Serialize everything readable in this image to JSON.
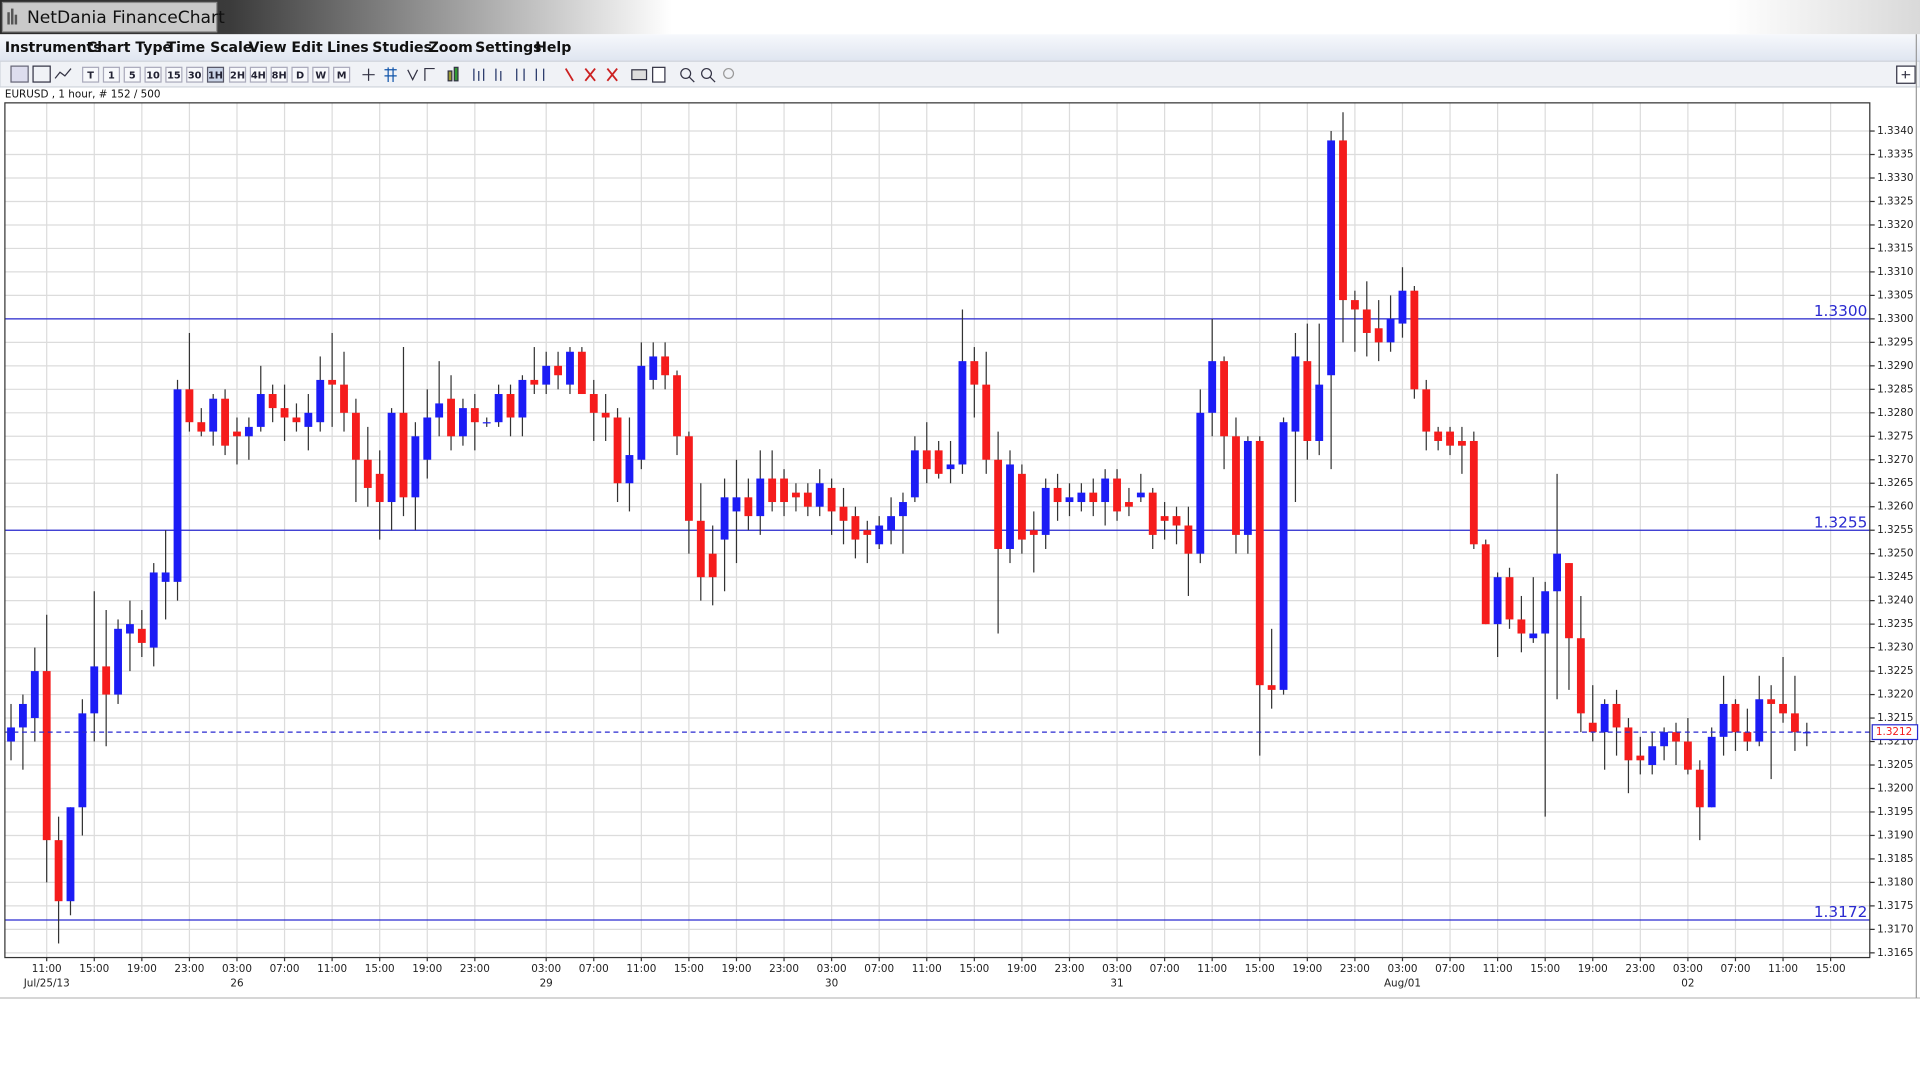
{
  "window": {
    "title": "NetDania FinanceChart"
  },
  "menu": [
    "Instruments",
    "Chart Type",
    "Time Scale",
    "View",
    "Edit",
    "Lines",
    "Studies",
    "Zoom",
    "Settings",
    "Help"
  ],
  "toolbar": [
    "T",
    "1",
    "5",
    "10",
    "15",
    "30",
    "1H",
    "2H",
    "4H",
    "8H",
    "D",
    "W",
    "M"
  ],
  "chart_data": {
    "type": "candlestick",
    "title": "EURUSD , 1 hour, # 152 / 500",
    "up_color": "#1c1cf5",
    "down_color": "#f51c1c",
    "line_color": "#2a2ad0",
    "grid": true,
    "ylim": [
      1.3164,
      1.3346
    ],
    "yticks": [
      1.3165,
      {
        "value": 1.317,
        "label": "1.3170"
      },
      1.3175,
      {
        "value": 1.318,
        "label": "1.3180"
      },
      1.3185,
      {
        "value": 1.319,
        "label": "1.3190"
      },
      1.3195,
      {
        "value": 1.32,
        "label": "1.3200"
      },
      1.3205,
      {
        "value": 1.321,
        "label": "1.3210"
      },
      1.3215,
      {
        "value": 1.322,
        "label": "1.3220"
      },
      1.3225,
      {
        "value": 1.323,
        "label": "1.3230"
      },
      1.3235,
      {
        "value": 1.324,
        "label": "1.3240"
      },
      1.3245,
      {
        "value": 1.325,
        "label": "1.3250"
      },
      1.3255,
      {
        "value": 1.326,
        "label": "1.3260"
      },
      1.3265,
      {
        "value": 1.327,
        "label": "1.3270"
      },
      1.3275,
      {
        "value": 1.328,
        "label": "1.3280"
      },
      1.3285,
      {
        "value": 1.329,
        "label": "1.3290"
      },
      1.3295,
      {
        "value": 1.33,
        "label": "1.3300"
      },
      1.3305,
      {
        "value": 1.331,
        "label": "1.3310"
      },
      1.3315,
      {
        "value": 1.332,
        "label": "1.3320"
      },
      1.3325,
      {
        "value": 1.333,
        "label": "1.3330"
      },
      1.3335,
      {
        "value": 1.334,
        "label": "1.3340"
      }
    ],
    "hlines": [
      {
        "value": 1.33,
        "label": "1.3300"
      },
      1.3255,
      1.3172
    ],
    "current_price": 1.3212,
    "categories": [
      null,
      null,
      null,
      "11:00",
      null,
      null,
      null,
      "15:00",
      null,
      null,
      null,
      "19:00",
      null,
      null,
      null,
      "23:00",
      null,
      null,
      null,
      "03:00",
      null,
      null,
      null,
      "07:00",
      null,
      null,
      null,
      "11:00",
      null,
      null,
      null,
      "15:00",
      null,
      null,
      null,
      "19:00",
      null,
      null,
      null,
      "23:00",
      null,
      null,
      null,
      null,
      null,
      "03:00",
      null,
      null,
      null,
      "07:00",
      null,
      null,
      null,
      "11:00",
      null,
      null,
      null,
      "15:00",
      null,
      null,
      null,
      "19:00",
      null,
      null,
      null,
      "23:00",
      null,
      null,
      null,
      "03:00",
      null,
      null,
      null,
      "07:00",
      null,
      null,
      null,
      "11:00",
      null,
      null,
      null,
      "15:00",
      null,
      null,
      null,
      "19:00",
      null,
      null,
      null,
      "23:00",
      null,
      null,
      null,
      "03:00",
      null,
      null,
      null,
      "07:00",
      null,
      null,
      null,
      "11:00",
      null,
      null,
      null,
      "15:00",
      null,
      null,
      null,
      "19:00",
      null,
      null,
      null,
      "23:00",
      null,
      null,
      null,
      "03:00",
      null,
      null,
      null,
      "07:00",
      null,
      null,
      null,
      "11:00",
      null,
      null,
      null,
      "15:00",
      null,
      null,
      null,
      "19:00",
      null,
      null,
      null,
      "23:00",
      null,
      null,
      null,
      "03:00",
      null,
      null,
      null,
      "07:00",
      null,
      null,
      null,
      "11:00",
      null,
      null,
      null,
      "15:00"
    ],
    "dates": [
      null,
      null,
      null,
      "Jul/25/13",
      null,
      null,
      null,
      null,
      null,
      null,
      null,
      null,
      null,
      null,
      null,
      null,
      null,
      null,
      null,
      "26",
      null,
      null,
      null,
      null,
      null,
      null,
      null,
      null,
      null,
      null,
      null,
      null,
      null,
      null,
      null,
      null,
      null,
      null,
      null,
      null,
      null,
      null,
      null,
      null,
      null,
      "29",
      null,
      null,
      null,
      null,
      null,
      null,
      null,
      null,
      null,
      null,
      null,
      null,
      null,
      null,
      null,
      null,
      null,
      null,
      null,
      null,
      null,
      null,
      null,
      "30",
      null,
      null,
      null,
      null,
      null,
      null,
      null,
      null,
      null,
      null,
      null,
      null,
      null,
      null,
      null,
      null,
      null,
      null,
      null,
      null,
      null,
      null,
      null,
      "31",
      null,
      null,
      null,
      null,
      null,
      null,
      null,
      null,
      null,
      null,
      null,
      null,
      null,
      null,
      null,
      null,
      null,
      null,
      null,
      null,
      null,
      null,
      null,
      "Aug/01",
      null,
      null,
      null,
      null,
      null,
      null,
      null,
      null,
      null,
      null,
      null,
      null,
      null,
      null,
      null,
      null,
      null,
      null,
      null,
      null,
      null,
      null,
      null,
      "02",
      null,
      null,
      null,
      null,
      null,
      null,
      null,
      null,
      null,
      null,
      null,
      null
    ],
    "open": [
      1.321,
      1.3213,
      1.3215,
      1.3225,
      1.3189,
      1.3176,
      1.3196,
      1.3216,
      1.3226,
      1.322,
      1.3233,
      1.3234,
      1.323,
      1.3244,
      1.3244,
      1.3285,
      1.3278,
      1.3276,
      1.3283,
      1.3276,
      1.3275,
      1.3277,
      1.3284,
      1.3281,
      1.3279,
      1.3277,
      1.3278,
      1.3287,
      1.3286,
      1.328,
      1.327,
      1.3267,
      1.3261,
      1.328,
      1.3262,
      1.327,
      1.3279,
      1.3283,
      1.3275,
      1.3281,
      1.3278,
      1.3278,
      1.3284,
      1.3279,
      1.3287,
      1.3286,
      1.329,
      1.3286,
      1.3293,
      1.3284,
      1.328,
      1.3279,
      1.3265,
      1.327,
      1.3287,
      1.3292,
      1.3288,
      1.3275,
      1.3257,
      1.325,
      1.3253,
      1.3259,
      1.3262,
      1.3258,
      1.3266,
      1.3266,
      1.3263,
      1.3263,
      1.326,
      1.3264,
      1.326,
      1.3258,
      1.3255,
      1.3252,
      1.3255,
      1.3258,
      1.3262,
      1.3272,
      1.3272,
      1.3268,
      1.3269,
      1.3291,
      1.3286,
      1.327,
      1.3251,
      1.3267,
      1.3255,
      1.3254,
      1.3264,
      1.3261,
      1.3261,
      1.3263,
      1.3261,
      1.3266,
      1.3261,
      1.3262,
      1.3263,
      1.3258,
      1.3258,
      1.3256,
      1.325,
      1.328,
      1.3291,
      1.3275,
      1.3254,
      1.3274,
      1.3222,
      1.3221,
      1.3276,
      1.3291,
      1.3274,
      1.3288,
      1.3338,
      1.3304,
      1.3302,
      1.3298,
      1.3295,
      1.3299,
      1.3306,
      1.3285,
      1.3276,
      1.3276,
      1.3274,
      1.3274,
      1.3252,
      1.3235,
      1.3245,
      1.3236,
      1.3232,
      1.3233,
      1.3242,
      1.3248,
      1.3232,
      1.3214,
      1.3212,
      1.3218,
      1.3213,
      1.3207,
      1.3205,
      1.3209,
      1.3212,
      1.321,
      1.3204,
      1.3196,
      1.3211,
      1.3218,
      1.3212,
      1.321,
      1.3219,
      1.3218,
      1.3216,
      1.3212,
      null,
      null
    ],
    "high": [
      1.3218,
      1.322,
      1.323,
      1.3237,
      1.3194,
      1.3196,
      1.3219,
      1.3242,
      1.3238,
      1.3236,
      1.324,
      1.3238,
      1.3248,
      1.3255,
      1.3287,
      1.3297,
      1.3281,
      1.3284,
      1.3285,
      1.3279,
      1.3279,
      1.329,
      1.3286,
      1.3286,
      1.3282,
      1.3284,
      1.3292,
      1.3297,
      1.3293,
      1.3283,
      1.3277,
      1.3272,
      1.3281,
      1.3294,
      1.3278,
      1.3285,
      1.3291,
      1.3288,
      1.3283,
      1.3284,
      1.3279,
      1.3286,
      1.3286,
      1.3288,
      1.3294,
      1.3293,
      1.3293,
      1.3294,
      1.3294,
      1.3287,
      1.3284,
      1.3281,
      1.3279,
      1.3295,
      1.3295,
      1.3295,
      1.3289,
      1.3276,
      1.3265,
      1.3256,
      1.3266,
      1.327,
      1.3266,
      1.3272,
      1.3272,
      1.3268,
      1.3265,
      1.3265,
      1.3268,
      1.3266,
      1.3264,
      1.326,
      1.3257,
      1.3258,
      1.3262,
      1.3263,
      1.3275,
      1.3278,
      1.3274,
      1.3274,
      1.3302,
      1.3294,
      1.3293,
      1.3276,
      1.3272,
      1.3269,
      1.3259,
      1.3266,
      1.3267,
      1.3265,
      1.3265,
      1.3266,
      1.3268,
      1.3268,
      1.3264,
      1.3267,
      1.3264,
      1.3261,
      1.326,
      1.326,
      1.3285,
      1.33,
      1.3292,
      1.3279,
      1.3275,
      1.3275,
      1.3234,
      1.3279,
      1.3297,
      1.3299,
      1.3299,
      1.334,
      1.3344,
      1.3306,
      1.3308,
      1.3304,
      1.3305,
      1.3311,
      1.3307,
      1.3287,
      1.3277,
      1.3277,
      1.3277,
      1.3276,
      1.3253,
      1.3246,
      1.3247,
      1.3241,
      1.3245,
      1.3244,
      1.3267,
      1.3248,
      1.3241,
      1.3222,
      1.3219,
      1.3221,
      1.3215,
      1.3211,
      1.3212,
      1.3213,
      1.3214,
      1.3215,
      1.3206,
      1.3213,
      1.3224,
      1.3219,
      1.3217,
      1.3224,
      1.3222,
      1.3228,
      1.3224,
      1.3214,
      null,
      null
    ],
    "low": [
      1.3206,
      1.3204,
      1.321,
      1.318,
      1.3167,
      1.3173,
      1.319,
      1.321,
      1.3209,
      1.3218,
      1.3225,
      1.3228,
      1.3226,
      1.3236,
      1.324,
      1.3276,
      1.3275,
      1.3273,
      1.3271,
      1.3269,
      1.327,
      1.3276,
      1.3278,
      1.3274,
      1.3276,
      1.3272,
      1.3276,
      1.3277,
      1.3276,
      1.3261,
      1.326,
      1.3253,
      1.3255,
      1.3258,
      1.3255,
      1.3266,
      1.3275,
      1.3272,
      1.3273,
      1.3272,
      1.3277,
      1.3277,
      1.3275,
      1.3275,
      1.3284,
      1.3284,
      1.3285,
      1.3284,
      1.3284,
      1.3274,
      1.3274,
      1.3261,
      1.3259,
      1.3268,
      1.3285,
      1.3285,
      1.3271,
      1.325,
      1.324,
      1.3239,
      1.3242,
      1.3248,
      1.3255,
      1.3254,
      1.3259,
      1.3258,
      1.3259,
      1.3258,
      1.3258,
      1.3254,
      1.3252,
      1.3249,
      1.3248,
      1.3251,
      1.3252,
      1.325,
      1.3261,
      1.3265,
      1.3266,
      1.3265,
      1.3267,
      1.3279,
      1.3267,
      1.3233,
      1.3248,
      1.325,
      1.3246,
      1.3251,
      1.3257,
      1.3258,
      1.3259,
      1.3258,
      1.3256,
      1.3257,
      1.3258,
      1.3261,
      1.3251,
      1.3253,
      1.3252,
      1.3241,
      1.3248,
      1.3275,
      1.3268,
      1.325,
      1.325,
      1.3207,
      1.3217,
      1.322,
      1.3261,
      1.327,
      1.3271,
      1.3268,
      1.3295,
      1.3293,
      1.3292,
      1.3291,
      1.3293,
      1.3296,
      1.3283,
      1.3272,
      1.3272,
      1.3271,
      1.3267,
      1.3251,
      1.3235,
      1.3228,
      1.3234,
      1.3229,
      1.3231,
      1.3194,
      1.3219,
      1.3221,
      1.3212,
      1.321,
      1.3204,
      1.3207,
      1.3199,
      1.3203,
      1.3203,
      1.3206,
      1.3205,
      1.3203,
      1.3189,
      1.3196,
      1.3207,
      1.3208,
      1.3208,
      1.3209,
      1.3202,
      1.3214,
      1.3208,
      1.3209,
      null,
      null
    ],
    "close": [
      1.3213,
      1.3218,
      1.3225,
      1.3189,
      1.3176,
      1.3196,
      1.3216,
      1.3226,
      1.322,
      1.3234,
      1.3235,
      1.3231,
      1.3246,
      1.3246,
      1.3285,
      1.3278,
      1.3276,
      1.3283,
      1.3273,
      1.3275,
      1.3277,
      1.3284,
      1.3281,
      1.3279,
      1.3278,
      1.328,
      1.3287,
      1.3286,
      1.328,
      1.327,
      1.3264,
      1.3261,
      1.328,
      1.3262,
      1.3275,
      1.3279,
      1.3282,
      1.3275,
      1.3281,
      1.3278,
      1.3278,
      1.3284,
      1.3279,
      1.3287,
      1.3286,
      1.329,
      1.3288,
      1.3293,
      1.3284,
      1.328,
      1.3279,
      1.3265,
      1.3271,
      1.329,
      1.3292,
      1.3288,
      1.3275,
      1.3257,
      1.3245,
      1.3245,
      1.3262,
      1.3262,
      1.3258,
      1.3266,
      1.3261,
      1.3261,
      1.3262,
      1.326,
      1.3265,
      1.3259,
      1.3257,
      1.3253,
      1.3254,
      1.3256,
      1.3258,
      1.3261,
      1.3272,
      1.3268,
      1.3267,
      1.3269,
      1.3291,
      1.3286,
      1.327,
      1.3251,
      1.3269,
      1.3253,
      1.3254,
      1.3264,
      1.3261,
      1.3262,
      1.3263,
      1.3261,
      1.3266,
      1.3259,
      1.326,
      1.3263,
      1.3254,
      1.3257,
      1.3256,
      1.325,
      1.328,
      1.3291,
      1.3275,
      1.3254,
      1.3274,
      1.3222,
      1.3221,
      1.3278,
      1.3292,
      1.3274,
      1.3286,
      1.3338,
      1.3304,
      1.3302,
      1.3297,
      1.3295,
      1.33,
      1.3306,
      1.3285,
      1.3276,
      1.3274,
      1.3273,
      1.3273,
      1.3252,
      1.3235,
      1.3245,
      1.3236,
      1.3233,
      1.3233,
      1.3242,
      1.325,
      1.3232,
      1.3216,
      1.3212,
      1.3218,
      1.3213,
      1.3206,
      1.3206,
      1.3209,
      1.3212,
      1.321,
      1.3204,
      1.3196,
      1.3211,
      1.3218,
      1.3212,
      1.321,
      1.3219,
      1.3218,
      1.3216,
      1.3212,
      1.3212,
      null,
      null
    ]
  }
}
